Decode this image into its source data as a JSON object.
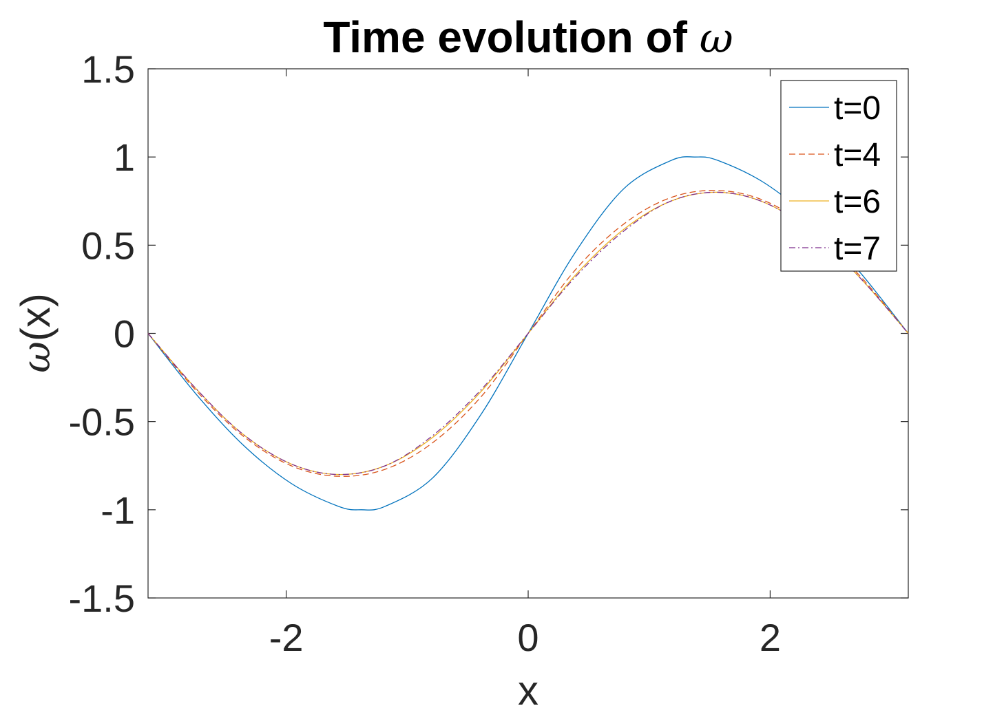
{
  "chart_data": {
    "type": "line",
    "title": "Time evolution of ",
    "title_symbol": "ω",
    "xlabel": "x",
    "ylabel_symbol": "ω",
    "ylabel_suffix": "(x)",
    "xlim": [
      -3.1416,
      3.1416
    ],
    "ylim": [
      -1.5,
      1.5
    ],
    "xticks": [
      -2,
      0,
      2
    ],
    "xtick_labels": [
      "-2",
      "0",
      "2"
    ],
    "yticks": [
      -1.5,
      -1,
      -0.5,
      0,
      0.5,
      1,
      1.5
    ],
    "ytick_labels": [
      "-1.5",
      "-1",
      "-0.5",
      "0",
      "0.5",
      "1",
      "1.5"
    ],
    "grid": false,
    "legend_position": "top-right",
    "series": [
      {
        "name": "t=0",
        "color": "#0072BD",
        "dash": "solid",
        "x": [
          -3.1416,
          -2.75,
          -2.36,
          -1.96,
          -1.57,
          -1.38,
          -1.18,
          -0.79,
          -0.39,
          0,
          0.39,
          0.79,
          1.18,
          1.38,
          1.57,
          1.96,
          2.36,
          2.75,
          3.1416
        ],
        "y": [
          0,
          -0.34,
          -0.63,
          -0.85,
          -0.98,
          -1.0,
          -0.98,
          -0.82,
          -0.46,
          0,
          0.46,
          0.82,
          0.98,
          1.0,
          0.98,
          0.85,
          0.63,
          0.34,
          0
        ]
      },
      {
        "name": "t=4",
        "color": "#D95319",
        "dash": "dashed",
        "x": [
          -3.1416,
          -2.75,
          -2.36,
          -1.96,
          -1.57,
          -1.18,
          -0.79,
          -0.39,
          0,
          0.39,
          0.79,
          1.18,
          1.57,
          1.96,
          2.36,
          2.75,
          3.1416
        ],
        "y": [
          0,
          -0.32,
          -0.58,
          -0.75,
          -0.81,
          -0.77,
          -0.62,
          -0.36,
          0,
          0.36,
          0.62,
          0.77,
          0.81,
          0.75,
          0.58,
          0.32,
          0
        ]
      },
      {
        "name": "t=6",
        "color": "#EDB120",
        "dash": "solid",
        "x": [
          -3.1416,
          -2.75,
          -2.36,
          -1.96,
          -1.57,
          -1.18,
          -0.79,
          -0.39,
          0,
          0.39,
          0.79,
          1.18,
          1.57,
          1.96,
          2.36,
          2.75,
          3.1416
        ],
        "y": [
          0,
          -0.31,
          -0.57,
          -0.74,
          -0.8,
          -0.75,
          -0.59,
          -0.33,
          0,
          0.33,
          0.59,
          0.75,
          0.8,
          0.74,
          0.57,
          0.31,
          0
        ]
      },
      {
        "name": "t=7",
        "color": "#7E2F8E",
        "dash": "dashdot",
        "x": [
          -3.1416,
          -2.75,
          -2.36,
          -1.96,
          -1.57,
          -1.18,
          -0.79,
          -0.39,
          0,
          0.39,
          0.79,
          1.18,
          1.57,
          1.96,
          2.36,
          2.75,
          3.1416
        ],
        "y": [
          0,
          -0.31,
          -0.57,
          -0.74,
          -0.8,
          -0.75,
          -0.58,
          -0.32,
          0,
          0.32,
          0.58,
          0.75,
          0.8,
          0.74,
          0.57,
          0.31,
          0
        ]
      }
    ]
  }
}
